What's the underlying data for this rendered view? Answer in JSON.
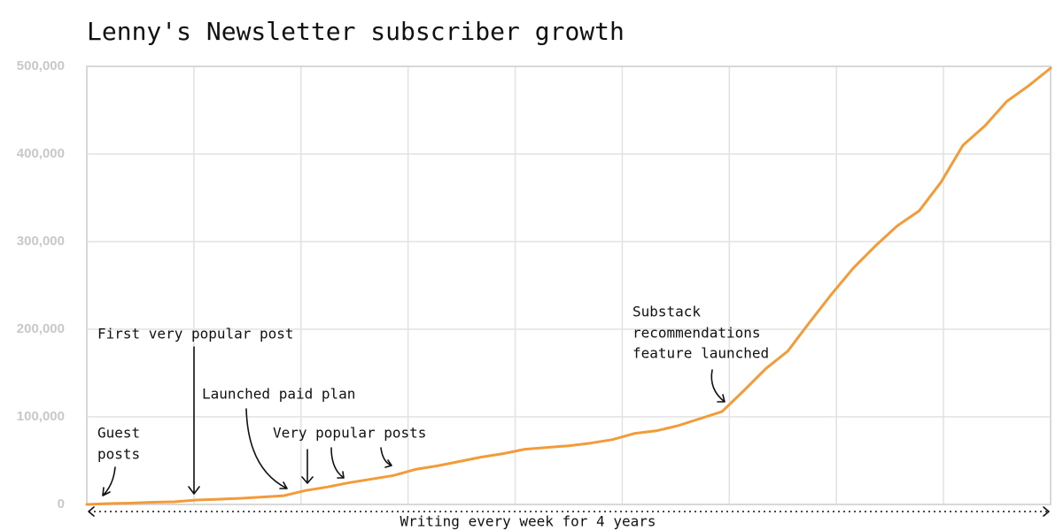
{
  "chart_data": {
    "type": "line",
    "title": "Lenny's Newsletter subscriber growth",
    "x_label": "Writing every week for 4 years",
    "series": [
      {
        "name": "Subscribers",
        "color": "#f29b38",
        "values": [
          0,
          1000,
          1500,
          2500,
          3000,
          5000,
          6000,
          7000,
          8500,
          10000,
          16000,
          20000,
          25000,
          29000,
          33000,
          40000,
          44000,
          49000,
          54000,
          58000,
          63000,
          65000,
          67000,
          70000,
          74000,
          81000,
          84000,
          90000,
          98000,
          106000,
          130000,
          155000,
          175000,
          208000,
          240000,
          270000,
          295000,
          318000,
          335000,
          368000,
          410000,
          432000,
          460000,
          478000,
          498000
        ]
      }
    ],
    "ylim": [
      0,
      500000
    ],
    "yticks": [
      0,
      {
        "value": 100000,
        "label": "100,000"
      },
      {
        "value": 200000,
        "label": "200,000"
      },
      {
        "value": 300000,
        "label": "300,000"
      },
      {
        "value": 400000,
        "label": "400,000"
      },
      {
        "value": 500000,
        "label": "500,000"
      }
    ],
    "grid": true,
    "annotations": [
      [
        "Guest",
        "posts"
      ],
      [
        "First very popular post"
      ],
      [
        "Launched paid plan"
      ],
      [
        "Very popular posts"
      ],
      [
        "Substack",
        "recommendations",
        "feature launched"
      ]
    ]
  }
}
